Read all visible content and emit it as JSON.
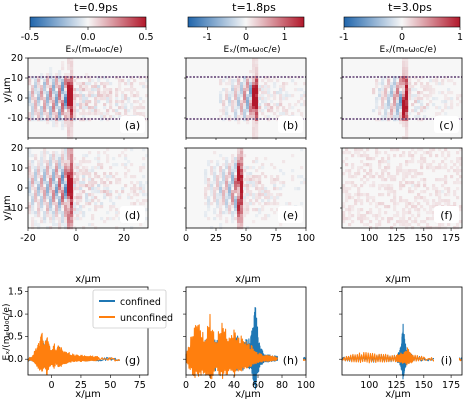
{
  "figure": {
    "columns": [
      {
        "time_label": "t=0.9ps",
        "colorbar": {
          "ticks": [
            "-0.5",
            "0.0",
            "0.5"
          ],
          "range": [
            -0.5,
            0.5
          ]
        }
      },
      {
        "time_label": "t=1.8ps",
        "colorbar": {
          "ticks": [
            "-1",
            "0",
            "1"
          ],
          "range": [
            -1.5,
            1.5
          ]
        }
      },
      {
        "time_label": "t=3.0ps",
        "colorbar": {
          "ticks": [
            "-1",
            "0",
            "1"
          ],
          "range": [
            -1,
            1
          ]
        }
      }
    ],
    "colorbar_label": "Eₓ/(mₑω₀c/e)",
    "colormap": {
      "low": "#2166ac",
      "mid": "#f7f7f7",
      "high": "#b2182b"
    },
    "map_ylabel": "y/μm",
    "map_yticks": [
      "20",
      "10",
      "0",
      "-10"
    ],
    "map_xlabel": "x/μm",
    "map_xticks": [
      [
        "-20",
        "0",
        "20"
      ],
      [
        "0",
        "25",
        "50",
        "75",
        "100"
      ],
      [
        "100",
        "125",
        "150",
        "175"
      ]
    ],
    "panel_letters": [
      "(a)",
      "(b)",
      "(c)",
      "(d)",
      "(e)",
      "(f)",
      "(g)",
      "(h)",
      "(i)"
    ],
    "lineout_ylabel": "Eₓ/(mₑω₀c/e)",
    "lineout_yticks": [
      "1.5",
      "1.0",
      "0.5",
      "0.0"
    ],
    "lineout_xlabel": "x/μm",
    "lineout_xticks": [
      [
        "0",
        "25",
        "50",
        "75"
      ],
      [
        "0",
        "20",
        "40",
        "60",
        "80",
        "100"
      ],
      [
        "100",
        "125",
        "150",
        "175"
      ]
    ],
    "legend": {
      "confined": "confined",
      "unconfined": "unconfined"
    },
    "series_colors": {
      "confined": "#1f77b4",
      "unconfined": "#ff7f0e"
    }
  },
  "chart_data": [
    {
      "type": "heatmap",
      "panel": "(a)",
      "time": "t=0.9ps",
      "xlim": [
        -20,
        30
      ],
      "ylim": [
        -20,
        20
      ],
      "color_range": [
        -0.5,
        0.5
      ],
      "features": {
        "laser_front_x": -3,
        "channel_walls_y": [
          10.5,
          -10.5
        ]
      }
    },
    {
      "type": "heatmap",
      "panel": "(b)",
      "time": "t=1.8ps",
      "xlim": [
        0,
        100
      ],
      "ylim": [
        -20,
        20
      ],
      "color_range": [
        -1.5,
        1.5
      ],
      "features": {
        "laser_front_x": 57,
        "channel_walls_y": [
          10.5,
          -10.5
        ]
      }
    },
    {
      "type": "heatmap",
      "panel": "(c)",
      "time": "t=3.0ps",
      "xlim": [
        75,
        185
      ],
      "ylim": [
        -20,
        20
      ],
      "color_range": [
        -1,
        1
      ],
      "features": {
        "laser_front_x": 132,
        "channel_walls_y": [
          10.5,
          -10.5
        ]
      }
    },
    {
      "type": "heatmap",
      "panel": "(d)",
      "time": "t=0.9ps",
      "xlim": [
        -20,
        30
      ],
      "ylim": [
        -20,
        20
      ],
      "color_range": [
        -0.5,
        0.5
      ],
      "features": {
        "laser_front_x": -3
      }
    },
    {
      "type": "heatmap",
      "panel": "(e)",
      "time": "t=1.8ps",
      "xlim": [
        0,
        100
      ],
      "ylim": [
        -20,
        20
      ],
      "color_range": [
        -1.5,
        1.5
      ],
      "features": {
        "laser_front_x": 45
      }
    },
    {
      "type": "heatmap",
      "panel": "(f)",
      "time": "t=3.0ps",
      "xlim": [
        75,
        185
      ],
      "ylim": [
        -20,
        20
      ],
      "color_range": [
        -1,
        1
      ],
      "features": {}
    },
    {
      "type": "line",
      "panel": "(g)",
      "xlim": [
        -20,
        82
      ],
      "ylim": [
        -0.35,
        1.6
      ],
      "series": [
        {
          "name": "confined",
          "x": [
            -20,
            -17,
            -14,
            -11,
            -8,
            -6,
            -4,
            -2,
            0,
            2,
            4,
            6,
            8,
            10,
            12,
            15,
            20,
            25,
            30,
            35,
            40,
            50,
            60,
            70,
            80
          ],
          "values": [
            0,
            0,
            0.1,
            0.2,
            0.45,
            0.3,
            0.5,
            0.3,
            0.15,
            0.2,
            0.1,
            0.3,
            0.2,
            0.1,
            0.15,
            0.1,
            0.05,
            0.08,
            0.05,
            0.04,
            0.05,
            0.03,
            0.04,
            0.03,
            0.03
          ]
        },
        {
          "name": "unconfined",
          "x": [
            -20,
            -17,
            -14,
            -11,
            -8,
            -6,
            -4,
            -2,
            0,
            2,
            4,
            6,
            8,
            10,
            12,
            15,
            20,
            25,
            30,
            35,
            40,
            50,
            60,
            70,
            80
          ],
          "values": [
            0,
            0.05,
            0.2,
            0.4,
            0.6,
            0.3,
            0.7,
            0.35,
            0.25,
            0.4,
            0.2,
            0.35,
            0.3,
            0.2,
            0.2,
            0.15,
            0.1,
            0.1,
            0.08,
            0.07,
            0.06,
            0.05,
            0.05,
            0.04,
            0.04
          ]
        }
      ]
    },
    {
      "type": "line",
      "panel": "(h)",
      "xlim": [
        0,
        100
      ],
      "ylim": [
        -0.35,
        1.6
      ],
      "series": [
        {
          "name": "confined",
          "x": [
            0,
            5,
            10,
            15,
            20,
            25,
            30,
            35,
            40,
            45,
            50,
            54,
            56,
            58,
            60,
            62,
            65,
            70,
            75,
            80,
            85,
            90,
            95,
            100
          ],
          "values": [
            0.1,
            0.35,
            0.55,
            0.4,
            0.6,
            0.45,
            0.5,
            0.4,
            0.55,
            0.5,
            0.45,
            0.5,
            0.9,
            1.25,
            0.6,
            0.3,
            0.15,
            0.1,
            0.08,
            0.05,
            0.05,
            0.04,
            0.04,
            0.03
          ]
        },
        {
          "name": "unconfined",
          "x": [
            0,
            5,
            10,
            15,
            20,
            25,
            30,
            35,
            40,
            45,
            50,
            52,
            55,
            60,
            65,
            70,
            75,
            80,
            85,
            90,
            95,
            100
          ],
          "values": [
            0.15,
            0.6,
            0.9,
            0.55,
            1.0,
            0.5,
            0.8,
            0.6,
            0.7,
            0.55,
            0.4,
            0.35,
            0.3,
            0.15,
            0.1,
            0.08,
            0.06,
            0.05,
            0.05,
            0.04,
            0.04,
            0.03
          ]
        }
      ]
    },
    {
      "type": "line",
      "panel": "(i)",
      "xlim": [
        75,
        185
      ],
      "ylim": [
        -0.35,
        1.6
      ],
      "series": [
        {
          "name": "confined",
          "x": [
            75,
            85,
            95,
            105,
            115,
            125,
            128,
            130,
            131,
            132,
            134,
            137,
            140,
            150,
            160,
            170,
            180,
            185
          ],
          "values": [
            0.05,
            0.1,
            0.08,
            0.12,
            0.1,
            0.1,
            0.2,
            0.5,
            0.85,
            0.6,
            0.2,
            0.15,
            0.08,
            0.05,
            0.05,
            0.04,
            0.04,
            0.04
          ]
        },
        {
          "name": "unconfined",
          "x": [
            75,
            85,
            95,
            105,
            115,
            125,
            130,
            135,
            140,
            150,
            160,
            170,
            180,
            185
          ],
          "values": [
            0.05,
            0.12,
            0.15,
            0.15,
            0.12,
            0.1,
            0.15,
            0.25,
            0.1,
            0.06,
            0.05,
            0.04,
            0.04,
            0.04
          ]
        }
      ]
    }
  ]
}
